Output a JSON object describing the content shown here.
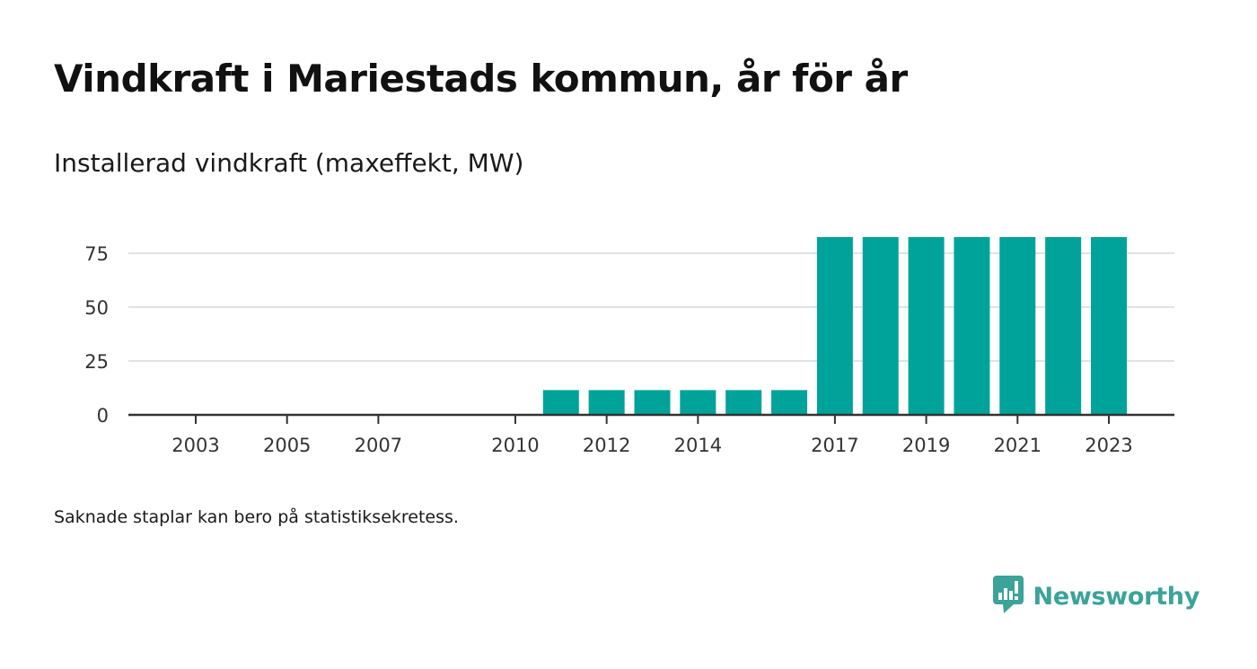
{
  "header": {
    "title": "Vindkraft i Mariestads kommun, år för år",
    "subtitle": "Installerad vindkraft (maxeffekt, MW)"
  },
  "footer": {
    "note": "Saknade staplar kan bero på statistiksekretess.",
    "brand_name": "Newsworthy",
    "brand_icon": "newsworthy-logo-icon"
  },
  "colors": {
    "bar": "#00a39a",
    "grid": "#d9d9d9",
    "axis": "#333333",
    "brand": "#3aa39a"
  },
  "chart_data": {
    "type": "bar",
    "categories": [
      "2011",
      "2012",
      "2013",
      "2014",
      "2015",
      "2016",
      "2017",
      "2018",
      "2019",
      "2020",
      "2021",
      "2022",
      "2023"
    ],
    "values": [
      11.5,
      11.5,
      11.5,
      11.5,
      11.5,
      11.5,
      82.5,
      82.5,
      82.5,
      82.5,
      82.5,
      82.5,
      82.5
    ],
    "x_tick_labels": [
      "2003",
      "2005",
      "2007",
      "2010",
      "2012",
      "2014",
      "2017",
      "2019",
      "2021",
      "2023"
    ],
    "x_range": [
      2002,
      2024
    ],
    "y_ticks": [
      0,
      25,
      50,
      75
    ],
    "ylim": [
      0,
      82.5
    ],
    "grid": true,
    "title": "",
    "xlabel": "",
    "ylabel": ""
  }
}
